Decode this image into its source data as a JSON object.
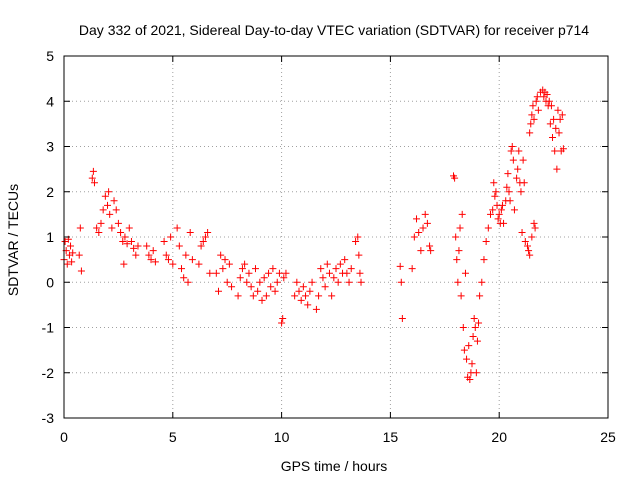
{
  "chart_data": {
    "type": "scatter",
    "title": "Day 332 of 2021, Sidereal Day-to-day VTEC variation (SDTVAR) for receiver p714",
    "xlabel": "GPS time / hours",
    "ylabel": "SDTVAR / TECUs",
    "xlim": [
      0,
      25
    ],
    "ylim": [
      -3,
      5
    ],
    "xticks": [
      "0",
      "5",
      "10",
      "15",
      "20",
      "25"
    ],
    "yticks": [
      "-3",
      "-2",
      "-1",
      "0",
      "1",
      "2",
      "3",
      "4",
      "5"
    ],
    "grid": true,
    "marker": "plus",
    "color": "#ff0000",
    "series": [
      {
        "name": "SDTVAR",
        "points": [
          [
            0.0,
            0.5
          ],
          [
            0.05,
            0.9
          ],
          [
            0.1,
            0.7
          ],
          [
            0.15,
            0.4
          ],
          [
            0.2,
            0.95
          ],
          [
            0.25,
            0.6
          ],
          [
            0.3,
            0.8
          ],
          [
            0.35,
            0.45
          ],
          [
            0.4,
            0.65
          ],
          [
            0.7,
            0.6
          ],
          [
            0.75,
            1.2
          ],
          [
            0.8,
            0.25
          ],
          [
            1.3,
            2.3
          ],
          [
            1.35,
            2.45
          ],
          [
            1.4,
            2.2
          ],
          [
            1.5,
            1.2
          ],
          [
            1.6,
            1.1
          ],
          [
            1.7,
            1.3
          ],
          [
            1.8,
            1.6
          ],
          [
            1.9,
            1.9
          ],
          [
            2.0,
            1.7
          ],
          [
            2.05,
            2.0
          ],
          [
            2.1,
            1.5
          ],
          [
            2.2,
            1.2
          ],
          [
            2.3,
            1.8
          ],
          [
            2.4,
            1.6
          ],
          [
            2.5,
            1.3
          ],
          [
            2.6,
            1.1
          ],
          [
            2.7,
            0.9
          ],
          [
            2.75,
            0.4
          ],
          [
            2.8,
            1.0
          ],
          [
            2.9,
            0.85
          ],
          [
            3.0,
            1.2
          ],
          [
            3.1,
            0.9
          ],
          [
            3.2,
            0.75
          ],
          [
            3.3,
            0.6
          ],
          [
            3.4,
            0.8
          ],
          [
            3.8,
            0.8
          ],
          [
            3.9,
            0.6
          ],
          [
            4.0,
            0.5
          ],
          [
            4.1,
            0.7
          ],
          [
            4.2,
            0.45
          ],
          [
            4.6,
            0.9
          ],
          [
            4.7,
            0.6
          ],
          [
            4.8,
            0.5
          ],
          [
            4.9,
            1.0
          ],
          [
            5.0,
            0.4
          ],
          [
            5.2,
            1.2
          ],
          [
            5.3,
            0.8
          ],
          [
            5.4,
            0.3
          ],
          [
            5.5,
            0.1
          ],
          [
            5.6,
            0.6
          ],
          [
            5.7,
            0.0
          ],
          [
            5.8,
            1.1
          ],
          [
            5.9,
            0.5
          ],
          [
            6.2,
            0.4
          ],
          [
            6.3,
            0.8
          ],
          [
            6.4,
            0.9
          ],
          [
            6.5,
            1.0
          ],
          [
            6.6,
            1.1
          ],
          [
            6.7,
            0.2
          ],
          [
            7.0,
            0.2
          ],
          [
            7.1,
            -0.2
          ],
          [
            7.2,
            0.6
          ],
          [
            7.3,
            0.3
          ],
          [
            7.4,
            0.5
          ],
          [
            7.5,
            0.0
          ],
          [
            7.6,
            0.4
          ],
          [
            7.7,
            -0.1
          ],
          [
            8.0,
            -0.3
          ],
          [
            8.1,
            0.1
          ],
          [
            8.2,
            0.3
          ],
          [
            8.3,
            0.4
          ],
          [
            8.4,
            0.0
          ],
          [
            8.5,
            0.2
          ],
          [
            8.6,
            -0.1
          ],
          [
            8.7,
            -0.3
          ],
          [
            8.8,
            0.3
          ],
          [
            8.9,
            -0.2
          ],
          [
            9.0,
            0.0
          ],
          [
            9.1,
            -0.4
          ],
          [
            9.2,
            0.1
          ],
          [
            9.3,
            -0.3
          ],
          [
            9.4,
            0.2
          ],
          [
            9.5,
            -0.1
          ],
          [
            9.6,
            0.3
          ],
          [
            9.7,
            -0.2
          ],
          [
            9.8,
            0.0
          ],
          [
            9.9,
            0.2
          ],
          [
            10.0,
            -0.9
          ],
          [
            10.05,
            -0.8
          ],
          [
            10.1,
            0.1
          ],
          [
            10.2,
            0.2
          ],
          [
            10.6,
            -0.3
          ],
          [
            10.7,
            0.0
          ],
          [
            10.8,
            -0.2
          ],
          [
            10.9,
            -0.4
          ],
          [
            11.0,
            -0.1
          ],
          [
            11.1,
            -0.3
          ],
          [
            11.2,
            -0.5
          ],
          [
            11.3,
            -0.2
          ],
          [
            11.4,
            0.0
          ],
          [
            11.6,
            -0.6
          ],
          [
            11.7,
            -0.3
          ],
          [
            11.8,
            0.3
          ],
          [
            11.9,
            0.1
          ],
          [
            12.0,
            -0.1
          ],
          [
            12.1,
            0.4
          ],
          [
            12.2,
            0.2
          ],
          [
            12.3,
            -0.3
          ],
          [
            12.4,
            0.1
          ],
          [
            12.5,
            0.3
          ],
          [
            12.6,
            0.0
          ],
          [
            12.7,
            0.4
          ],
          [
            12.8,
            0.2
          ],
          [
            12.9,
            0.5
          ],
          [
            13.0,
            0.2
          ],
          [
            13.1,
            0.0
          ],
          [
            13.2,
            0.3
          ],
          [
            13.4,
            0.9
          ],
          [
            13.5,
            1.0
          ],
          [
            13.55,
            0.6
          ],
          [
            13.6,
            0.2
          ],
          [
            13.65,
            0.0
          ],
          [
            15.45,
            0.35
          ],
          [
            15.5,
            0.0
          ],
          [
            15.55,
            -0.8
          ],
          [
            16.0,
            0.3
          ],
          [
            16.1,
            1.0
          ],
          [
            16.2,
            1.4
          ],
          [
            16.3,
            1.1
          ],
          [
            16.4,
            0.7
          ],
          [
            16.5,
            1.2
          ],
          [
            16.6,
            1.5
          ],
          [
            16.7,
            1.3
          ],
          [
            16.8,
            0.8
          ],
          [
            16.85,
            0.7
          ],
          [
            17.9,
            2.35
          ],
          [
            17.95,
            2.3
          ],
          [
            18.0,
            1.0
          ],
          [
            18.05,
            0.5
          ],
          [
            18.1,
            0.0
          ],
          [
            18.15,
            0.7
          ],
          [
            18.2,
            1.2
          ],
          [
            18.25,
            -0.3
          ],
          [
            18.3,
            1.5
          ],
          [
            18.35,
            -1.0
          ],
          [
            18.4,
            -1.5
          ],
          [
            18.45,
            0.2
          ],
          [
            18.5,
            -1.7
          ],
          [
            18.55,
            -2.1
          ],
          [
            18.6,
            -1.4
          ],
          [
            18.65,
            -2.15
          ],
          [
            18.7,
            -2.0
          ],
          [
            18.75,
            -1.8
          ],
          [
            18.8,
            -1.2
          ],
          [
            18.85,
            -0.8
          ],
          [
            18.9,
            -1.0
          ],
          [
            18.95,
            -2.0
          ],
          [
            19.0,
            -1.3
          ],
          [
            19.05,
            -0.9
          ],
          [
            19.1,
            -0.3
          ],
          [
            19.2,
            0.0
          ],
          [
            19.3,
            0.5
          ],
          [
            19.4,
            0.9
          ],
          [
            19.5,
            1.2
          ],
          [
            19.6,
            1.5
          ],
          [
            19.7,
            1.6
          ],
          [
            19.75,
            2.2
          ],
          [
            19.8,
            1.9
          ],
          [
            19.85,
            2.0
          ],
          [
            19.9,
            1.7
          ],
          [
            19.95,
            1.4
          ],
          [
            20.0,
            1.5
          ],
          [
            20.05,
            1.3
          ],
          [
            20.1,
            1.6
          ],
          [
            20.15,
            1.7
          ],
          [
            20.2,
            1.3
          ],
          [
            20.3,
            1.8
          ],
          [
            20.35,
            2.1
          ],
          [
            20.4,
            2.4
          ],
          [
            20.45,
            2.0
          ],
          [
            20.5,
            1.8
          ],
          [
            20.55,
            2.9
          ],
          [
            20.6,
            3.0
          ],
          [
            20.65,
            2.7
          ],
          [
            20.7,
            1.6
          ],
          [
            20.8,
            2.3
          ],
          [
            20.85,
            2.5
          ],
          [
            20.9,
            2.9
          ],
          [
            20.95,
            2.2
          ],
          [
            21.0,
            2.0
          ],
          [
            21.05,
            1.1
          ],
          [
            21.1,
            2.7
          ],
          [
            21.15,
            2.2
          ],
          [
            21.2,
            0.9
          ],
          [
            21.3,
            0.8
          ],
          [
            21.35,
            0.7
          ],
          [
            21.4,
            0.6
          ],
          [
            21.5,
            1.0
          ],
          [
            21.6,
            1.3
          ],
          [
            21.65,
            1.2
          ],
          [
            21.4,
            3.3
          ],
          [
            21.45,
            3.5
          ],
          [
            21.5,
            3.7
          ],
          [
            21.55,
            3.9
          ],
          [
            21.6,
            3.6
          ],
          [
            21.7,
            4.0
          ],
          [
            21.75,
            4.1
          ],
          [
            21.8,
            3.8
          ],
          [
            21.9,
            4.2
          ],
          [
            22.0,
            4.25
          ],
          [
            22.05,
            4.1
          ],
          [
            22.1,
            4.2
          ],
          [
            22.15,
            4.0
          ],
          [
            22.2,
            4.15
          ],
          [
            22.25,
            3.9
          ],
          [
            22.3,
            4.0
          ],
          [
            22.35,
            3.5
          ],
          [
            22.4,
            3.9
          ],
          [
            22.45,
            3.2
          ],
          [
            22.5,
            3.6
          ],
          [
            22.55,
            2.9
          ],
          [
            22.6,
            3.4
          ],
          [
            22.65,
            2.5
          ],
          [
            22.7,
            3.8
          ],
          [
            22.75,
            3.3
          ],
          [
            22.8,
            3.6
          ],
          [
            22.85,
            2.9
          ],
          [
            22.9,
            3.7
          ],
          [
            22.95,
            2.95
          ]
        ]
      }
    ]
  }
}
